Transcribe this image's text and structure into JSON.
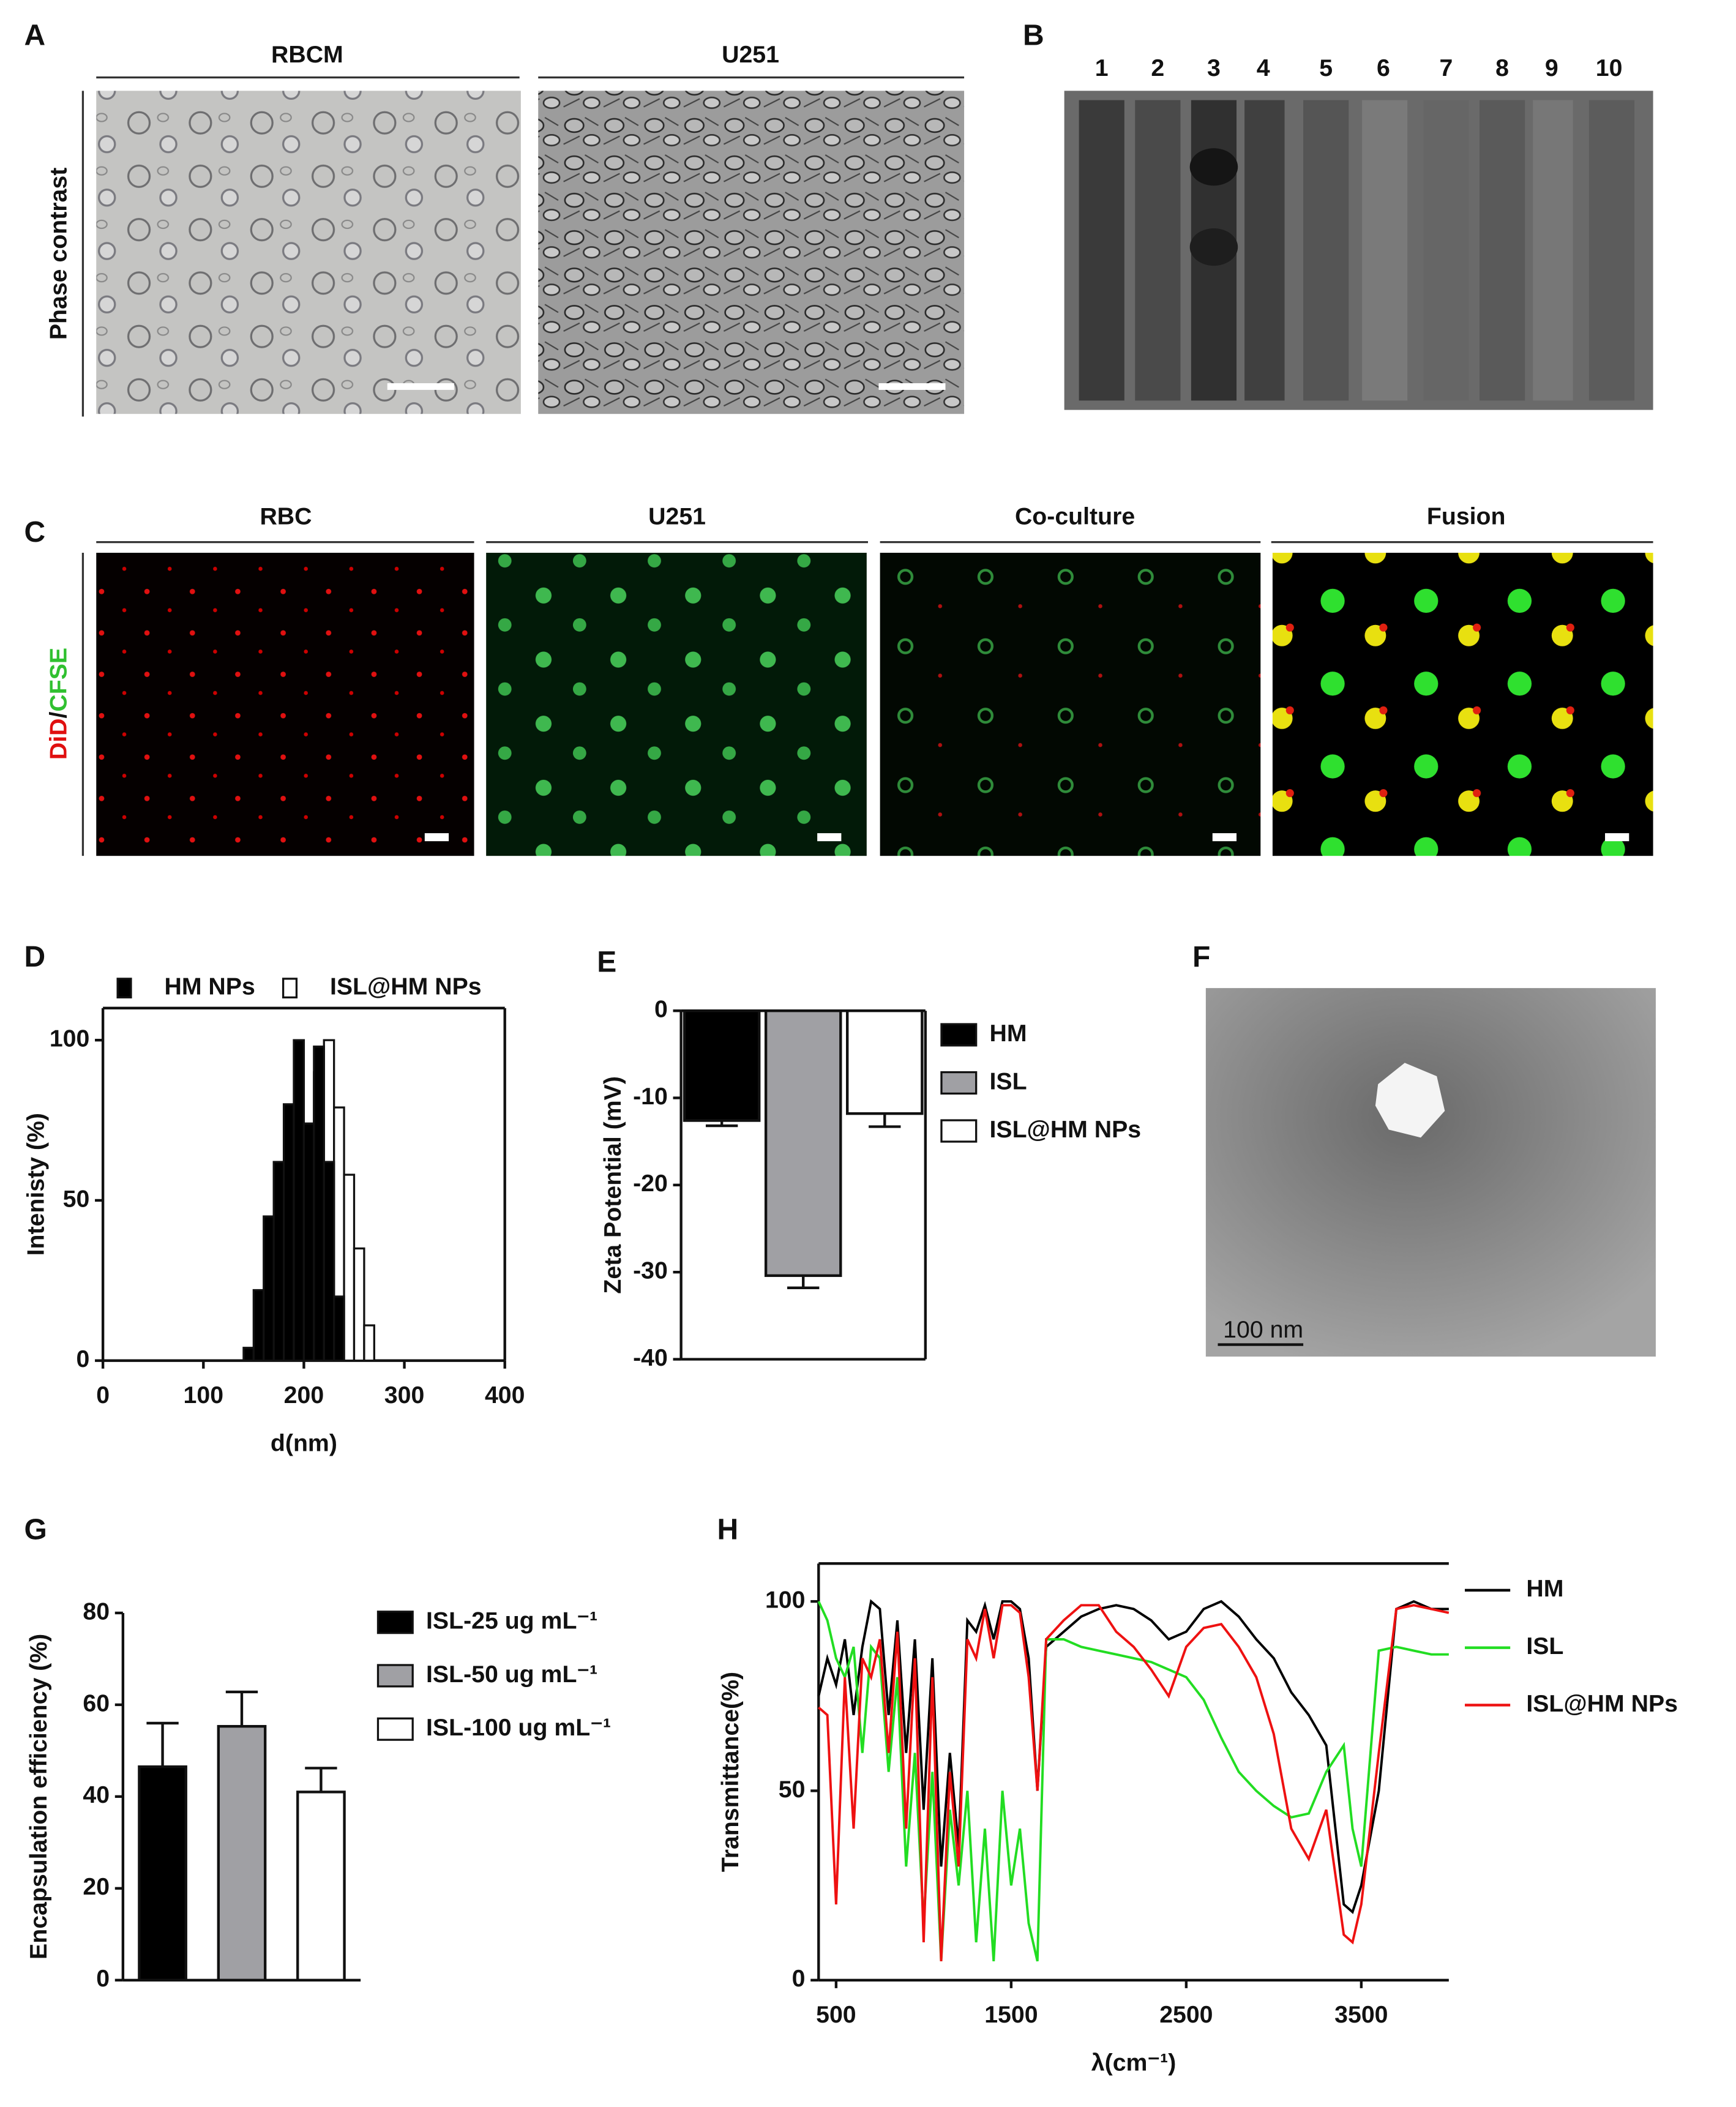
{
  "figure": {
    "A": {
      "label": "A",
      "column_titles": [
        "RBCM",
        "U251"
      ],
      "row_title": "Phase contrast"
    },
    "B": {
      "label": "B",
      "lanes": [
        "1",
        "2",
        "3",
        "4",
        "5",
        "6",
        "7",
        "8",
        "9",
        "10"
      ]
    },
    "C": {
      "label": "C",
      "column_titles": [
        "RBC",
        "U251",
        "Co-culture",
        "Fusion"
      ],
      "row_title": [
        "DiD",
        "/",
        "CFSE"
      ]
    },
    "D": {
      "label": "D"
    },
    "E": {
      "label": "E"
    },
    "F": {
      "label": "F",
      "scale_bar": "100 nm"
    },
    "G": {
      "label": "G"
    },
    "H": {
      "label": "H"
    }
  },
  "chart_data": [
    {
      "type": "histogram",
      "x_label": "d(nm)",
      "y_label": "Intenisty (%)",
      "bins": [
        140,
        150,
        160,
        170,
        180,
        190,
        200,
        210,
        220,
        230,
        240,
        250,
        260,
        270,
        280,
        290,
        300
      ],
      "series": [
        {
          "name": "HM NPs",
          "color": "#000000",
          "values": [
            4,
            22,
            45,
            62,
            80,
            100,
            74,
            98,
            62,
            20,
            0,
            0,
            0,
            0,
            0,
            0
          ]
        },
        {
          "name": "ISL@HM NPs",
          "color": "#ffffff",
          "values": [
            0,
            0,
            0,
            0,
            0,
            0,
            0,
            90,
            100,
            79,
            58,
            35,
            11,
            0,
            0,
            0
          ]
        }
      ],
      "xlim": [
        0,
        400
      ],
      "xticks": [
        0,
        100,
        200,
        300,
        400
      ],
      "ylim": [
        0,
        110
      ],
      "yticks": [
        0,
        50,
        100
      ]
    },
    {
      "type": "bar",
      "y_label": "Zeta Potential (mV)",
      "series": [
        {
          "name": "HM",
          "color": "#000000",
          "values": [
            -12.6
          ],
          "errors": [
            0.6
          ]
        },
        {
          "name": "ISL",
          "color": "#a0a0a4",
          "values": [
            -30.4
          ],
          "errors": [
            1.4
          ]
        },
        {
          "name": "ISL@HM NPs",
          "color": "#ffffff",
          "values": [
            -11.8
          ],
          "errors": [
            1.5
          ]
        }
      ],
      "ylim": [
        -40,
        0
      ],
      "yticks": [
        -40,
        -30,
        -20,
        -10,
        0
      ]
    },
    {
      "type": "bar",
      "y_label": "Encapsulation efficiency (%)",
      "series": [
        {
          "name": "ISL-25 ug mL⁻¹",
          "color": "#000000",
          "values": [
            46.5
          ],
          "errors": [
            9.5
          ]
        },
        {
          "name": "ISL-50 ug mL⁻¹",
          "color": "#a0a0a4",
          "values": [
            55.3
          ],
          "errors": [
            7.5
          ]
        },
        {
          "name": "ISL-100 ug mL⁻¹",
          "color": "#ffffff",
          "values": [
            41
          ],
          "errors": [
            5.2
          ]
        }
      ],
      "ylim": [
        0,
        80
      ],
      "yticks": [
        0,
        20,
        40,
        60,
        80
      ]
    },
    {
      "type": "line",
      "x_label": "λ(cm⁻¹)",
      "y_label": "Transmittance(%)",
      "x": [
        400,
        450,
        500,
        550,
        600,
        650,
        700,
        750,
        800,
        850,
        900,
        950,
        1000,
        1050,
        1100,
        1150,
        1200,
        1250,
        1300,
        1350,
        1400,
        1450,
        1500,
        1550,
        1600,
        1650,
        1700,
        1800,
        1900,
        2000,
        2100,
        2200,
        2300,
        2400,
        2500,
        2600,
        2700,
        2800,
        2900,
        3000,
        3100,
        3200,
        3300,
        3400,
        3450,
        3500,
        3600,
        3700,
        3800,
        3900,
        4000
      ],
      "series": [
        {
          "name": "HM",
          "color": "#000000",
          "values": [
            75,
            85,
            78,
            90,
            70,
            88,
            100,
            98,
            70,
            95,
            60,
            90,
            45,
            85,
            30,
            60,
            35,
            95,
            92,
            99,
            90,
            100,
            100,
            98,
            85,
            50,
            88,
            92,
            96,
            98,
            99,
            98,
            95,
            90,
            92,
            98,
            100,
            96,
            90,
            85,
            76,
            70,
            62,
            20,
            18,
            25,
            50,
            98,
            100,
            98,
            98
          ]
        },
        {
          "name": "ISL",
          "color": "#22dd22",
          "values": [
            100,
            95,
            85,
            80,
            88,
            60,
            88,
            85,
            55,
            80,
            30,
            60,
            15,
            55,
            5,
            45,
            25,
            50,
            10,
            40,
            5,
            50,
            25,
            40,
            15,
            5,
            90,
            90,
            88,
            87,
            86,
            85,
            84,
            82,
            80,
            74,
            64,
            55,
            50,
            46,
            43,
            44,
            55,
            62,
            40,
            30,
            87,
            88,
            87,
            86,
            86
          ]
        },
        {
          "name": "ISL@HM NPs",
          "color": "#ee1111",
          "values": [
            72,
            70,
            20,
            80,
            40,
            85,
            80,
            90,
            60,
            92,
            40,
            85,
            10,
            80,
            5,
            55,
            30,
            90,
            85,
            98,
            85,
            99,
            99,
            97,
            80,
            50,
            90,
            95,
            99,
            99,
            92,
            88,
            82,
            75,
            88,
            93,
            94,
            88,
            80,
            65,
            40,
            32,
            45,
            12,
            10,
            20,
            60,
            98,
            99,
            98,
            97
          ]
        }
      ],
      "xlim": [
        400,
        4000
      ],
      "xticks": [
        500,
        1500,
        2500,
        3500
      ],
      "ylim": [
        0,
        110
      ],
      "yticks": [
        0,
        50,
        100
      ]
    }
  ]
}
